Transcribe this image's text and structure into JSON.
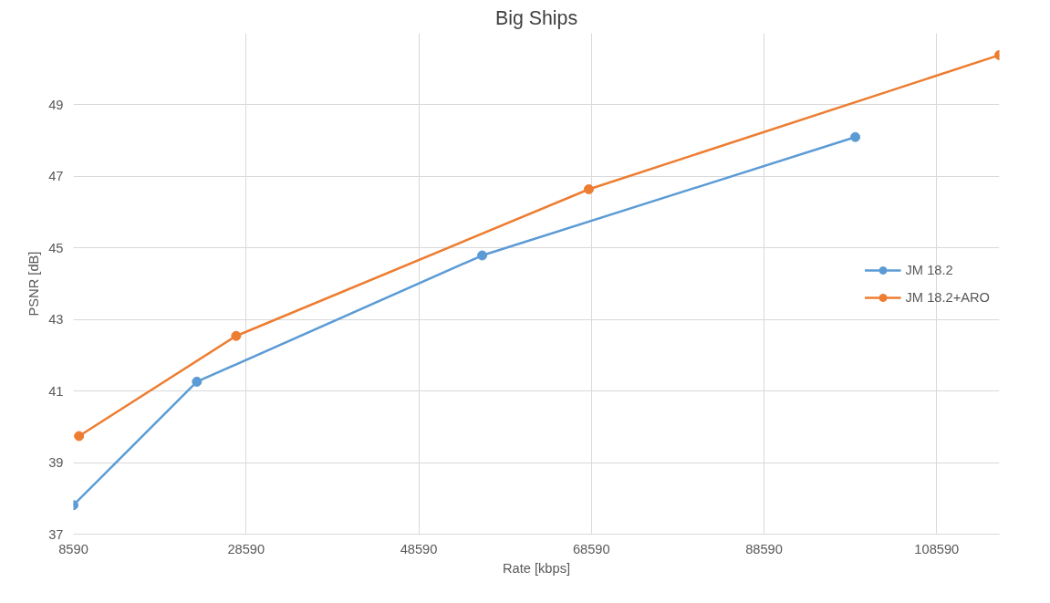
{
  "chart_data": {
    "type": "line",
    "title": "Big Ships",
    "xlabel": "Rate [kbps]",
    "ylabel": "PSNR [dB]",
    "xlim": [
      8590,
      115850
    ],
    "xticks": [
      8590,
      28590,
      48590,
      68590,
      88590,
      108590
    ],
    "ylim": [
      37,
      51
    ],
    "yticks": [
      37,
      39,
      41,
      43,
      45,
      47,
      49
    ],
    "grid": true,
    "legend": "right",
    "marker": "circle",
    "line_style": "solid",
    "series": [
      {
        "name": "JM 18.2",
        "color": "#5b9bd5",
        "x": [
          8590,
          22890,
          55940,
          99160
        ],
        "values": [
          37.81,
          41.26,
          44.79,
          48.1
        ]
      },
      {
        "name": "JM 18.2+ARO",
        "color": "#ed7d31",
        "x": [
          9240,
          27440,
          68290,
          115850
        ],
        "values": [
          39.74,
          42.54,
          46.64,
          50.39
        ]
      }
    ]
  }
}
